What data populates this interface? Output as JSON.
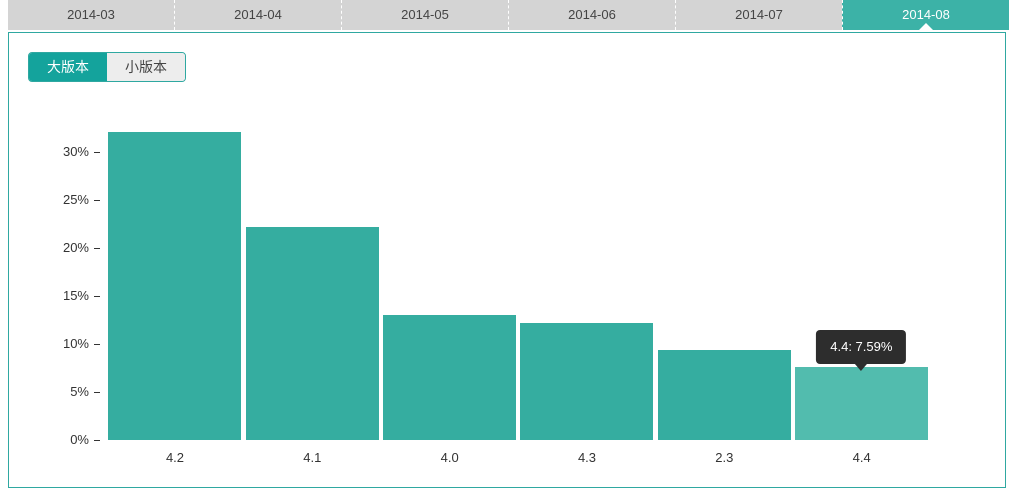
{
  "tab_bar": {
    "items": [
      {
        "label": "2014-03",
        "active": false
      },
      {
        "label": "2014-04",
        "active": false
      },
      {
        "label": "2014-05",
        "active": false
      },
      {
        "label": "2014-06",
        "active": false
      },
      {
        "label": "2014-07",
        "active": false
      },
      {
        "label": "2014-08",
        "active": true
      }
    ]
  },
  "toggle": {
    "options": [
      {
        "label": "大版本",
        "active": true
      },
      {
        "label": "小版本",
        "active": false
      }
    ]
  },
  "tooltip": {
    "text": "4.4: 7.59%"
  },
  "chart_data": {
    "type": "bar",
    "categories": [
      "4.2",
      "4.1",
      "4.0",
      "4.3",
      "2.3",
      "4.4"
    ],
    "values": [
      32.1,
      22.2,
      13.0,
      12.2,
      9.4,
      7.59
    ],
    "hover_index": 5,
    "y_ticks": [
      "0%",
      "5%",
      "10%",
      "15%",
      "20%",
      "25%",
      "30%"
    ],
    "ylim": [
      0,
      33.75
    ],
    "grid": false,
    "legend_position": "none"
  },
  "colors": {
    "bar": "#35ada0",
    "bar_hover": "#52bcae",
    "tab_bar_bg": "#d4d4d4",
    "tab_text": "#444444",
    "tab_active_bg": "#3cb2a7",
    "panel_border": "#2fa8a1",
    "toggle_active_bg": "#14a39c",
    "toggle_inactive_bg": "#ededed",
    "tooltip_bg": "#2d2d2d",
    "tooltip_text": "#ffffff",
    "axis_text": "#333333"
  }
}
